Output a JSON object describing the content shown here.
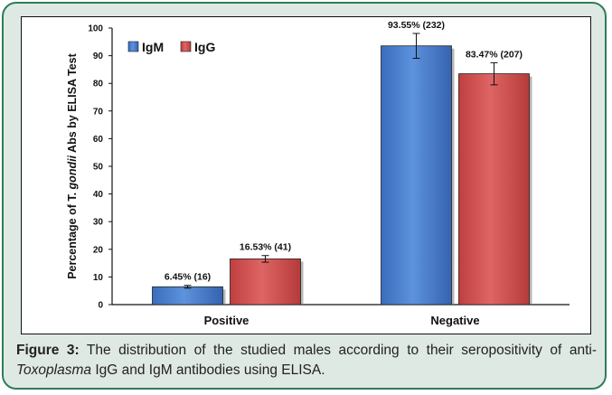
{
  "chart_data": {
    "type": "bar",
    "categories": [
      "Positive",
      "Negative"
    ],
    "series": [
      {
        "name": "IgM",
        "values": [
          6.45,
          93.55
        ],
        "errors": [
          0.5,
          4.5
        ],
        "labels": [
          "6.45% (16)",
          "93.55% (232)"
        ],
        "color": "#4a7fce"
      },
      {
        "name": "IgG",
        "values": [
          16.53,
          83.47
        ],
        "errors": [
          1.2,
          4.0
        ],
        "labels": [
          "16.53% (41)",
          "83.47% (207)"
        ],
        "color": "#cf4f4f"
      }
    ],
    "ylabel": {
      "pre": "Percentage of T. ",
      "italic": "gondii",
      "post": " Abs by ELISA Test"
    },
    "ylim": [
      0,
      100
    ],
    "yticks": [
      0,
      10,
      20,
      30,
      40,
      50,
      60,
      70,
      80,
      90,
      100
    ],
    "legend_position": "top-left",
    "grid": false
  },
  "caption": {
    "label": "Figure 3:",
    "text_before": " The distribution of the studied males according to their seropositivity of anti-",
    "italic": "Toxoplasma",
    "text_after": " IgG and IgM antibodies using ELISA."
  },
  "colors": {
    "frame_border": "#2e7d57",
    "frame_background": "#dfe9e3"
  }
}
